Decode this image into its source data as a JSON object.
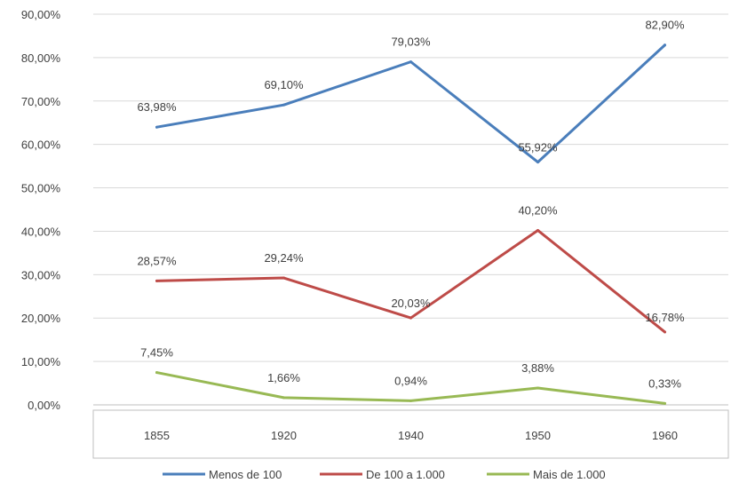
{
  "chart_data": {
    "type": "line",
    "categories": [
      "1855",
      "1920",
      "1940",
      "1950",
      "1960"
    ],
    "y_ticks": [
      "0,00%",
      "10,00%",
      "20,00%",
      "30,00%",
      "40,00%",
      "50,00%",
      "60,00%",
      "70,00%",
      "80,00%",
      "90,00%"
    ],
    "ylim": [
      0,
      90
    ],
    "grid": true,
    "legend_position": "bottom",
    "series": [
      {
        "name": "Menos de 100",
        "color": "#4a7ebb",
        "values": [
          63.98,
          69.1,
          79.03,
          55.92,
          82.9
        ],
        "labels": [
          "63,98%",
          "69,10%",
          "79,03%",
          "55,92%",
          "82,90%"
        ]
      },
      {
        "name": "De 100 a 1.000",
        "color": "#be4b48",
        "values": [
          28.57,
          29.24,
          20.03,
          40.2,
          16.78
        ],
        "labels": [
          "28,57%",
          "29,24%",
          "20,03%",
          "40,20%",
          "16,78%"
        ]
      },
      {
        "name": "Mais de 1.000",
        "color": "#98b954",
        "values": [
          7.45,
          1.66,
          0.94,
          3.88,
          0.33
        ],
        "labels": [
          "7,45%",
          "1,66%",
          "0,94%",
          "3,88%",
          "0,33%"
        ]
      }
    ]
  }
}
